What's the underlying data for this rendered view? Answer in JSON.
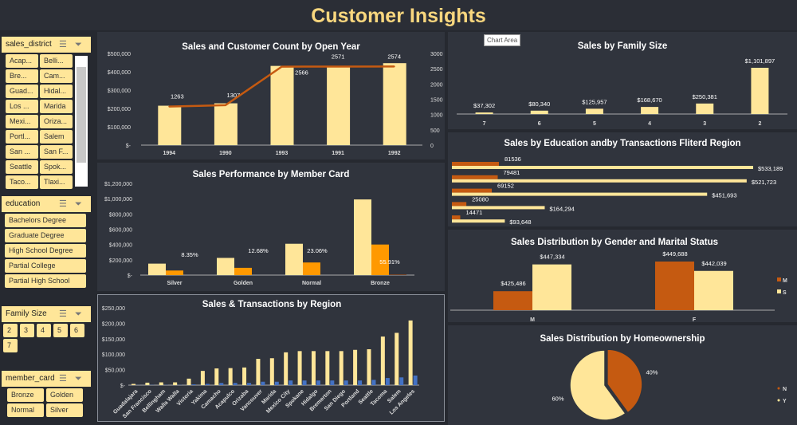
{
  "title": "Customer Insights",
  "tooltip": "Chart Area",
  "colors": {
    "light": "#ffe699",
    "dark_orange": "#c55a11",
    "orange": "#ff9900",
    "blue": "#4472c4"
  },
  "slicers": {
    "sales_district": {
      "label": "sales_district",
      "items": [
        "Acap...",
        "Belli...",
        "Bre...",
        "Cam...",
        "Guad...",
        "Hidal...",
        "Los ...",
        "Marida",
        "Mexi...",
        "Oriza...",
        "Portl...",
        "Salem",
        "San ...",
        "San F...",
        "Seattle",
        "Spok...",
        "Taco...",
        "Tlaxi..."
      ]
    },
    "education": {
      "label": "education",
      "items": [
        "Bachelors Degree",
        "Graduate Degree",
        "High School Degree",
        "Partial College",
        "Partial High School"
      ]
    },
    "family_size": {
      "label": "Family Size",
      "items": [
        "2",
        "3",
        "4",
        "5",
        "6",
        "7"
      ]
    },
    "member_card": {
      "label": "member_card",
      "items": [
        "Bronze",
        "Golden",
        "Normal",
        "Silver"
      ]
    }
  },
  "chart_data": [
    {
      "id": "open_year",
      "type": "bar+line",
      "title": "Sales and Customer Count by Open Year",
      "categories": [
        "1994",
        "1990",
        "1993",
        "1991",
        "1992"
      ],
      "series": [
        {
          "type": "bar",
          "values": [
            215000,
            228000,
            432000,
            432000,
            447000
          ]
        },
        {
          "type": "line",
          "axis": "secondary",
          "values": [
            1263,
            1307,
            2566,
            2571,
            2574
          ]
        }
      ],
      "ylim": [
        0,
        500000
      ],
      "yticks": [
        "$-",
        "$100,000",
        "$200,000",
        "$300,000",
        "$400,000",
        "$500,000"
      ],
      "y2lim": [
        0,
        3000
      ],
      "y2ticks": [
        "0",
        "500",
        "1000",
        "1500",
        "2000",
        "2500",
        "3000"
      ]
    },
    {
      "id": "member_card",
      "type": "bar",
      "title": "Sales Performance by Member Card",
      "categories": [
        "Silver",
        "Golden",
        "Normal",
        "Bronze"
      ],
      "series": [
        {
          "values": [
            150000,
            225000,
            410000,
            990000
          ]
        },
        {
          "values": [
            60000,
            95000,
            165000,
            400000
          ]
        },
        {
          "values": [
            0,
            0,
            0,
            5000
          ],
          "labels": [
            "8.35%",
            "12.68%",
            "23.06%",
            "55.91%"
          ]
        }
      ],
      "ylim": [
        0,
        1200000
      ],
      "yticks": [
        "$-",
        "$200,000",
        "$400,000",
        "$600,000",
        "$800,000",
        "$1,000,000",
        "$1,200,000"
      ]
    },
    {
      "id": "region",
      "type": "bar",
      "title": "Sales & Transactions by Region",
      "categories": [
        "Guadalajara",
        "San Francisco",
        "Bellingham",
        "Walla Walla",
        "Victoria",
        "Yakima",
        "Camacho",
        "Acapulco",
        "Orizaba",
        "Vancouver",
        "Marida",
        "Mexico City",
        "Spokane",
        "Hidalgo",
        "Bremerton",
        "San Diego",
        "Portland",
        "Seattle",
        "Tacoma",
        "Salem",
        "Los Angeles"
      ],
      "series": [
        {
          "values": [
            4000,
            8000,
            9000,
            9000,
            21000,
            46000,
            54000,
            55000,
            57000,
            85000,
            87000,
            106000,
            110000,
            110000,
            110000,
            110000,
            114000,
            116000,
            157000,
            169000,
            209000
          ]
        },
        {
          "values": [
            300,
            600,
            700,
            700,
            2500,
            4000,
            7000,
            7000,
            7000,
            11000,
            11000,
            15000,
            15000,
            15000,
            15000,
            15000,
            15000,
            17000,
            23000,
            25000,
            31000
          ]
        }
      ],
      "ylim": [
        0,
        250000
      ],
      "yticks": [
        "$-",
        "$50,000",
        "$100,000",
        "$150,000",
        "$200,000",
        "$250,000"
      ]
    },
    {
      "id": "family_size",
      "type": "bar",
      "title": "Sales by Family Size",
      "categories": [
        "7",
        "6",
        "5",
        "4",
        "3",
        "2"
      ],
      "values": [
        37302,
        80340,
        125957,
        168670,
        250381,
        1101897
      ],
      "labels": [
        "$37,302",
        "$80,340",
        "$125,957",
        "$168,670",
        "$250,381",
        "$1,101,897"
      ]
    },
    {
      "id": "education",
      "type": "bar-horizontal",
      "title": "Sales by Education andby Transactions Fliterd Region",
      "series": [
        {
          "values": [
            81536,
            79481,
            69152,
            25080,
            14471
          ],
          "labels": [
            "81536",
            "79481",
            "69152",
            "25080",
            "14471"
          ]
        },
        {
          "values": [
            533189,
            521723,
            451693,
            164294,
            93648
          ],
          "labels": [
            "$533,189",
            "$521,723",
            "$451,693",
            "$164,294",
            "$93,648"
          ]
        }
      ]
    },
    {
      "id": "gender",
      "type": "bar",
      "title": "Sales Distribution by Gender and Marital Status",
      "categories": [
        "M",
        "F"
      ],
      "series": [
        {
          "name": "M",
          "values": [
            425486,
            449688
          ],
          "labels": [
            "$425,486",
            "$449,688"
          ]
        },
        {
          "name": "S",
          "values": [
            447334,
            442039
          ],
          "labels": [
            "$447,334",
            "$442,039"
          ]
        }
      ],
      "ylim": [
        410000,
        460000
      ],
      "legend": "right"
    },
    {
      "id": "homeownership",
      "type": "pie",
      "title": "Sales Distribution by Homeownership",
      "categories": [
        "N",
        "Y"
      ],
      "values": [
        40,
        60
      ],
      "labels": [
        "40%",
        "60%"
      ],
      "legend": "right"
    }
  ]
}
